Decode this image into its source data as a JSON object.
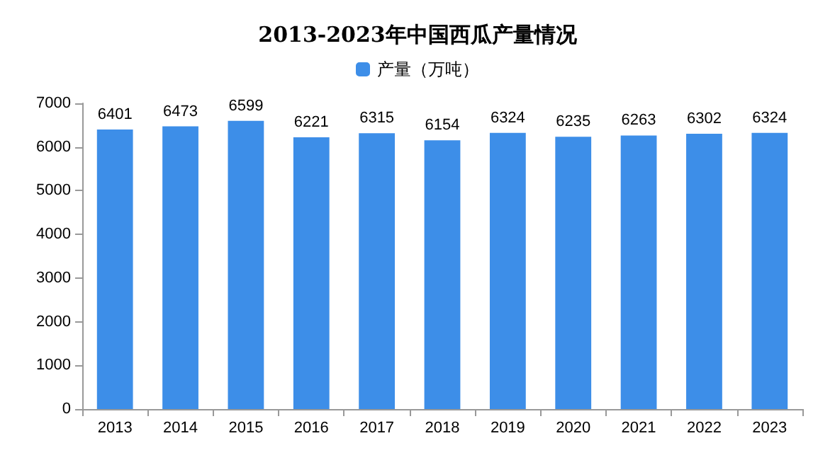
{
  "chart_data": {
    "type": "bar",
    "title": "2013-2023年中国西瓜产量情况",
    "categories": [
      "2013",
      "2014",
      "2015",
      "2016",
      "2017",
      "2018",
      "2019",
      "2020",
      "2021",
      "2022",
      "2023"
    ],
    "series": [
      {
        "name": "产量（万吨）",
        "color": "#3d8ee8",
        "values": [
          6401,
          6473,
          6599,
          6221,
          6315,
          6154,
          6324,
          6235,
          6263,
          6302,
          6324
        ]
      }
    ],
    "ylim": [
      0,
      7000
    ],
    "yticks": [
      0,
      1000,
      2000,
      3000,
      4000,
      5000,
      6000,
      7000
    ],
    "grid": false,
    "legend": "top",
    "data_labels": true
  }
}
